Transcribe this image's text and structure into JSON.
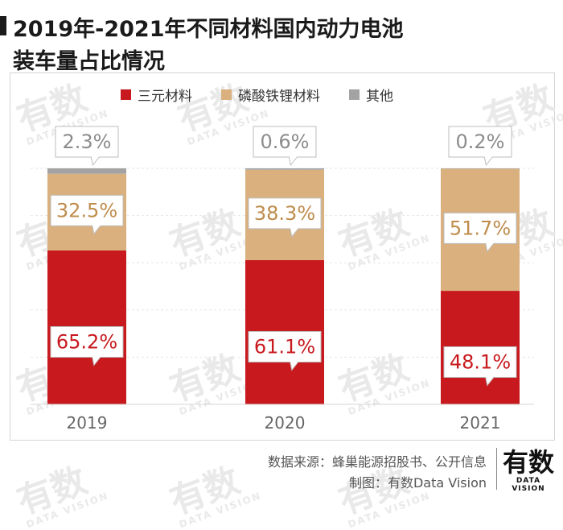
{
  "title": {
    "line1": "2019年-2021年不同材料国内动力电池",
    "line2": "装车量占比情况"
  },
  "watermark": {
    "main": "有数",
    "sub": "DATA VISION"
  },
  "legend": [
    {
      "label": "三元材料",
      "color": "#c8191e"
    },
    {
      "label": "磷酸铁锂材料",
      "color": "#d9b07e"
    },
    {
      "label": "其他",
      "color": "#a3a3a3"
    }
  ],
  "chart_data": {
    "type": "bar",
    "stacked": true,
    "categories": [
      "2019",
      "2020",
      "2021"
    ],
    "series": [
      {
        "name": "三元材料",
        "values": [
          65.2,
          61.1,
          48.1
        ],
        "color": "#c8191e"
      },
      {
        "name": "磷酸铁锂材料",
        "values": [
          32.5,
          38.3,
          51.7
        ],
        "color": "#d9b07e"
      },
      {
        "name": "其他",
        "values": [
          2.3,
          0.6,
          0.2
        ],
        "color": "#a3a3a3"
      }
    ],
    "labels": [
      [
        "65.2%",
        "32.5%",
        "2.3%"
      ],
      [
        "61.1%",
        "38.3%",
        "0.6%"
      ],
      [
        "48.1%",
        "51.7%",
        "0.2%"
      ]
    ],
    "ylim": [
      0,
      100
    ],
    "unit": "%",
    "label_color_red": "#c8191e",
    "label_color_tan": "#bf8c4c",
    "label_color_gray": "#8c8c8c",
    "grid": true
  },
  "footer": {
    "source": "数据来源：蜂巢能源招股书、公开信息",
    "credit": "制图：有数Data Vision"
  },
  "logo": {
    "main": "有数",
    "sub": "DATA VISION"
  }
}
